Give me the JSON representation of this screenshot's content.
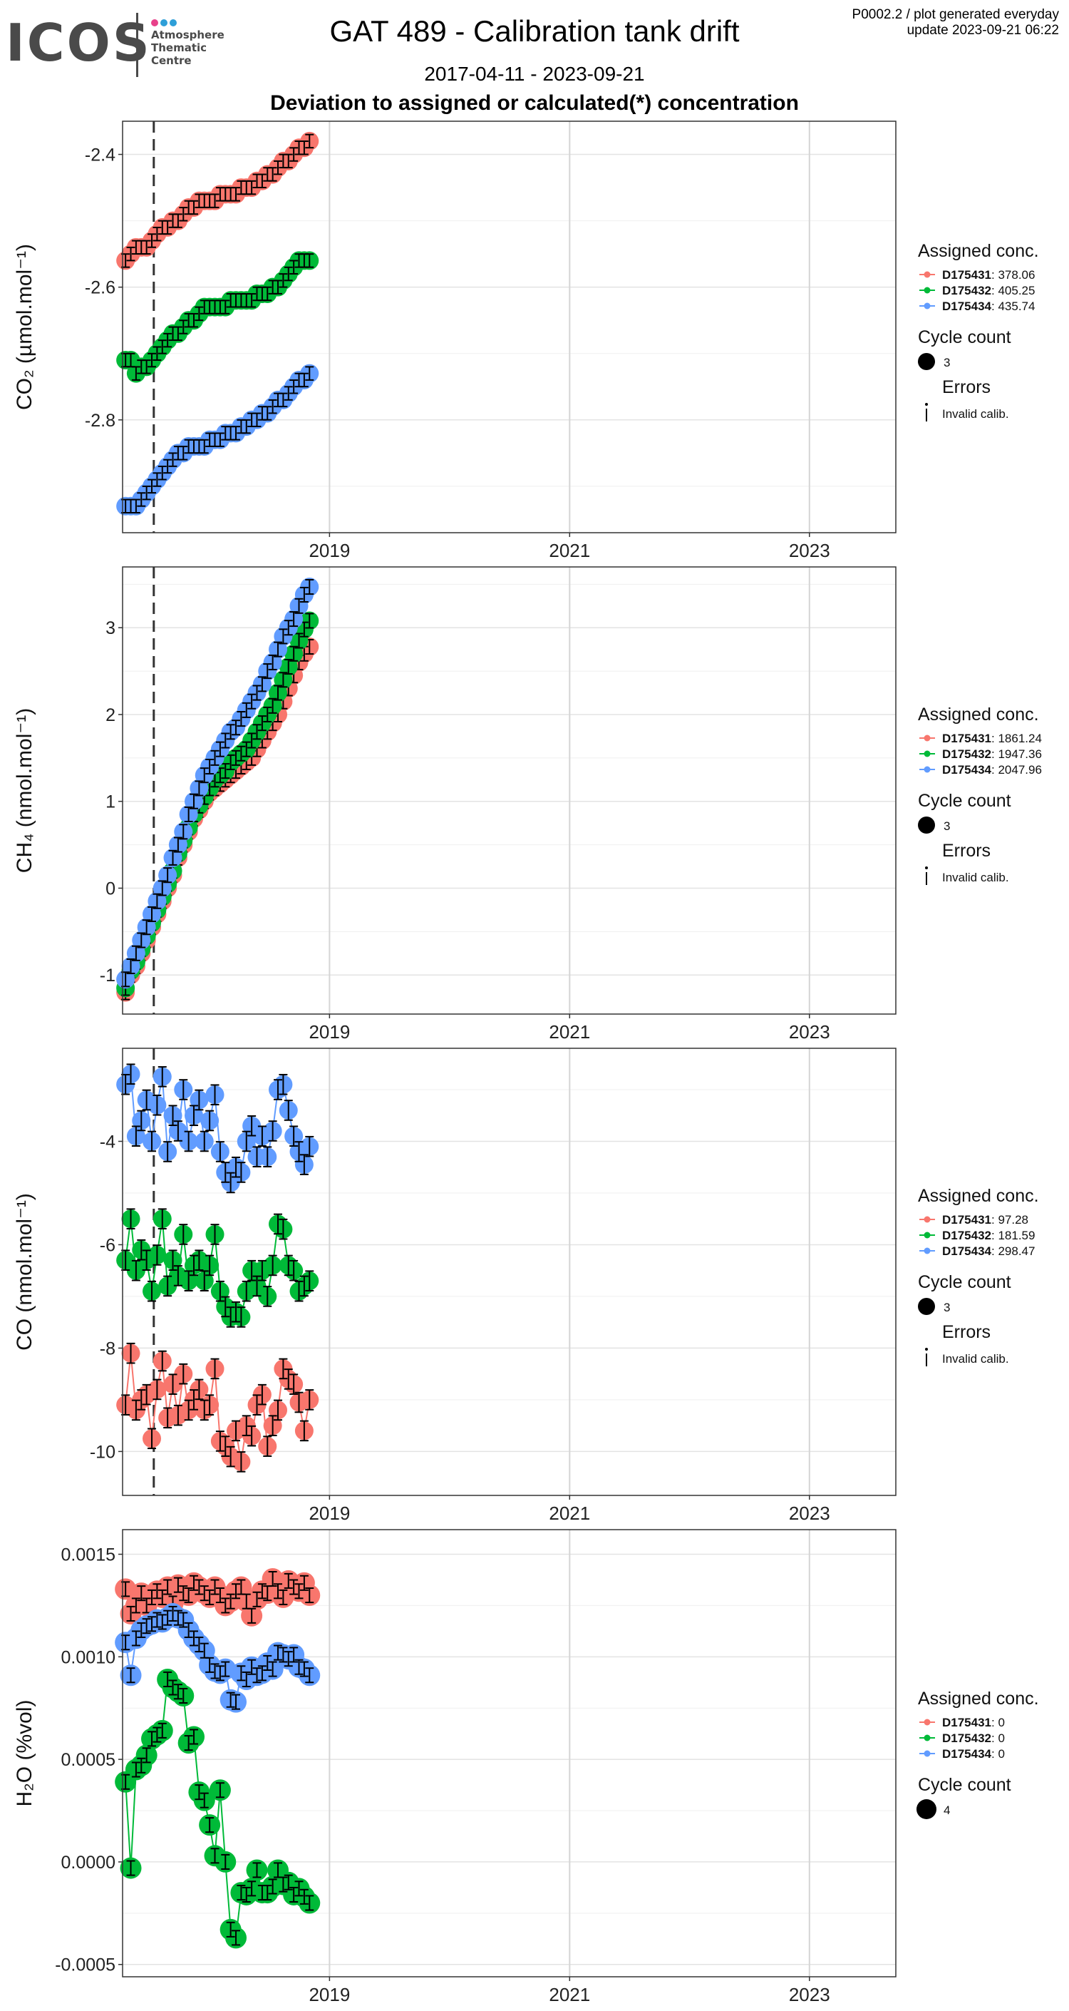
{
  "header": {
    "logo_text": "ICOS",
    "logo_subtitle": "Atmosphere\nThematic\nCentre",
    "logo_dot_colors": [
      "#e8418a",
      "#2e9fd8",
      "#2e9fd8"
    ],
    "title": "GAT 489 - Calibration tank drift",
    "meta_line1": "P0002.2 / plot generated everyday",
    "meta_line2": "update  2023-09-21 06:22",
    "date_range": "2017-04-11 - 2023-09-21",
    "subtitle": "Deviation to assigned or calculated(*) concentration"
  },
  "colors": {
    "D175431": "#F8766D",
    "D175432": "#00BA38",
    "D175434": "#619CFF"
  },
  "chart_data": [
    {
      "type": "scatter",
      "ylabel": "CO₂ (µmol.mol⁻¹)",
      "xlim": [
        "2017-04-11",
        "2023-09-21"
      ],
      "ylim": [
        -2.97,
        -2.35
      ],
      "x_ticks": [
        "2019",
        "2021",
        "2023"
      ],
      "y_ticks": [
        -2.4,
        -2.6,
        -2.8
      ],
      "vline": "2017-07-15",
      "legend": {
        "title": "Assigned conc.",
        "entries": [
          {
            "tank": "D175431",
            "value": ": 378.06"
          },
          {
            "tank": "D175432",
            "value": ": 405.25"
          },
          {
            "tank": "D175434",
            "value": ": 435.74"
          }
        ],
        "count_title": "Cycle count",
        "count_value": "3",
        "error_title": "Errors",
        "error_label": "Invalid calib."
      },
      "series": [
        {
          "name": "D175431",
          "x_start": "2017-04-20",
          "x_end": "2018-11-01",
          "values": [
            -2.56,
            -2.55,
            -2.54,
            -2.54,
            -2.54,
            -2.53,
            -2.52,
            -2.51,
            -2.51,
            -2.5,
            -2.5,
            -2.49,
            -2.48,
            -2.48,
            -2.47,
            -2.47,
            -2.47,
            -2.47,
            -2.46,
            -2.46,
            -2.46,
            -2.46,
            -2.45,
            -2.45,
            -2.45,
            -2.44,
            -2.44,
            -2.43,
            -2.43,
            -2.42,
            -2.41,
            -2.41,
            -2.4,
            -2.39,
            -2.39,
            -2.38
          ]
        },
        {
          "name": "D175432",
          "x_start": "2017-04-20",
          "x_end": "2018-11-01",
          "values": [
            -2.71,
            -2.71,
            -2.73,
            -2.72,
            -2.72,
            -2.71,
            -2.7,
            -2.69,
            -2.68,
            -2.67,
            -2.67,
            -2.66,
            -2.65,
            -2.65,
            -2.64,
            -2.63,
            -2.63,
            -2.63,
            -2.63,
            -2.63,
            -2.62,
            -2.62,
            -2.62,
            -2.62,
            -2.62,
            -2.61,
            -2.61,
            -2.61,
            -2.6,
            -2.6,
            -2.59,
            -2.58,
            -2.57,
            -2.56,
            -2.56,
            -2.56
          ]
        },
        {
          "name": "D175434",
          "x_start": "2017-04-20",
          "x_end": "2018-11-01",
          "values": [
            -2.93,
            -2.93,
            -2.93,
            -2.92,
            -2.91,
            -2.9,
            -2.89,
            -2.88,
            -2.87,
            -2.86,
            -2.85,
            -2.85,
            -2.84,
            -2.84,
            -2.84,
            -2.84,
            -2.83,
            -2.83,
            -2.83,
            -2.82,
            -2.82,
            -2.82,
            -2.81,
            -2.81,
            -2.8,
            -2.8,
            -2.79,
            -2.79,
            -2.78,
            -2.77,
            -2.77,
            -2.76,
            -2.75,
            -2.74,
            -2.74,
            -2.73
          ]
        }
      ]
    },
    {
      "type": "scatter",
      "ylabel": "CH₄ (nmol.mol⁻¹)",
      "xlim": [
        "2017-04-11",
        "2023-09-21"
      ],
      "ylim": [
        -1.45,
        3.7
      ],
      "x_ticks": [
        "2019",
        "2021",
        "2023"
      ],
      "y_ticks": [
        3,
        2,
        1,
        0,
        -1
      ],
      "vline": "2017-07-15",
      "legend": {
        "title": "Assigned conc.",
        "entries": [
          {
            "tank": "D175431",
            "value": ": 1861.24"
          },
          {
            "tank": "D175432",
            "value": ": 1947.36"
          },
          {
            "tank": "D175434",
            "value": ": 2047.96"
          }
        ],
        "count_title": "Cycle count",
        "count_value": "3",
        "error_title": "Errors",
        "error_label": "Invalid calib."
      },
      "series": [
        {
          "name": "D175431",
          "x_start": "2017-04-20",
          "x_end": "2018-11-01",
          "values": [
            -1.2,
            -1.0,
            -0.9,
            -0.75,
            -0.6,
            -0.45,
            -0.3,
            -0.15,
            0.0,
            0.15,
            0.35,
            0.5,
            0.65,
            0.8,
            0.9,
            1.0,
            1.1,
            1.15,
            1.2,
            1.25,
            1.3,
            1.35,
            1.4,
            1.45,
            1.5,
            1.6,
            1.7,
            1.8,
            1.9,
            2.0,
            2.15,
            2.3,
            2.45,
            2.6,
            2.7,
            2.78
          ]
        },
        {
          "name": "D175432",
          "x_start": "2017-04-20",
          "x_end": "2018-11-01",
          "values": [
            -1.15,
            -0.95,
            -0.85,
            -0.7,
            -0.55,
            -0.4,
            -0.25,
            -0.1,
            0.05,
            0.2,
            0.4,
            0.55,
            0.7,
            0.85,
            0.95,
            1.05,
            1.15,
            1.25,
            1.3,
            1.35,
            1.45,
            1.5,
            1.55,
            1.6,
            1.7,
            1.8,
            1.9,
            2.0,
            2.1,
            2.25,
            2.4,
            2.55,
            2.7,
            2.85,
            2.98,
            3.08
          ]
        },
        {
          "name": "D175434",
          "x_start": "2017-04-20",
          "x_end": "2018-11-01",
          "values": [
            -1.05,
            -0.9,
            -0.75,
            -0.6,
            -0.45,
            -0.3,
            -0.15,
            0.0,
            0.15,
            0.35,
            0.5,
            0.65,
            0.85,
            1.0,
            1.15,
            1.3,
            1.4,
            1.5,
            1.6,
            1.7,
            1.8,
            1.85,
            1.95,
            2.05,
            2.15,
            2.25,
            2.35,
            2.5,
            2.6,
            2.75,
            2.9,
            3.0,
            3.1,
            3.25,
            3.38,
            3.47
          ]
        }
      ]
    },
    {
      "type": "scatter",
      "ylabel": "CO (nmol.mol⁻¹)",
      "xlim": [
        "2017-04-11",
        "2023-09-21"
      ],
      "ylim": [
        -10.85,
        -2.2
      ],
      "x_ticks": [
        "2019",
        "2021",
        "2023"
      ],
      "y_ticks": [
        -4,
        -6,
        -8,
        -10
      ],
      "vline": "2017-07-15",
      "legend": {
        "title": "Assigned conc.",
        "entries": [
          {
            "tank": "D175431",
            "value": ": 97.28"
          },
          {
            "tank": "D175432",
            "value": ": 181.59"
          },
          {
            "tank": "D175434",
            "value": ": 298.47"
          }
        ],
        "count_title": "Cycle count",
        "count_value": "3",
        "error_title": "Errors",
        "error_label": "Invalid calib."
      },
      "series": [
        {
          "name": "D175431",
          "x_start": "2017-04-20",
          "x_end": "2018-11-01",
          "values": [
            -9.1,
            -8.1,
            -9.2,
            -9.0,
            -8.9,
            -9.75,
            -8.8,
            -8.25,
            -9.35,
            -8.7,
            -9.3,
            -8.5,
            -9.2,
            -9.0,
            -8.8,
            -9.2,
            -9.1,
            -8.4,
            -9.8,
            -9.9,
            -10.1,
            -9.6,
            -10.2,
            -9.5,
            -9.7,
            -9.1,
            -8.9,
            -9.9,
            -9.5,
            -9.2,
            -8.4,
            -8.6,
            -8.7,
            -9.05,
            -9.6,
            -9.0
          ]
        },
        {
          "name": "D175432",
          "x_start": "2017-04-20",
          "x_end": "2018-11-01",
          "values": [
            -6.3,
            -5.5,
            -6.5,
            -6.1,
            -6.3,
            -6.9,
            -6.2,
            -5.5,
            -6.8,
            -6.3,
            -6.6,
            -5.8,
            -6.7,
            -6.4,
            -6.3,
            -6.7,
            -6.4,
            -5.8,
            -6.9,
            -7.2,
            -7.4,
            -7.3,
            -7.4,
            -6.9,
            -6.5,
            -6.8,
            -6.5,
            -7.0,
            -6.4,
            -5.6,
            -5.7,
            -6.4,
            -6.5,
            -6.9,
            -6.8,
            -6.7
          ]
        },
        {
          "name": "D175434",
          "x_start": "2017-04-20",
          "x_end": "2018-11-01",
          "values": [
            -2.9,
            -2.7,
            -3.9,
            -3.6,
            -3.2,
            -4.0,
            -3.3,
            -2.75,
            -4.2,
            -3.5,
            -3.8,
            -3.0,
            -4.0,
            -3.5,
            -3.2,
            -4.0,
            -3.6,
            -3.1,
            -4.2,
            -4.6,
            -4.8,
            -4.5,
            -4.6,
            -4.0,
            -3.7,
            -4.3,
            -3.9,
            -4.3,
            -3.8,
            -3.0,
            -2.9,
            -3.4,
            -3.9,
            -4.2,
            -4.45,
            -4.1
          ]
        }
      ]
    },
    {
      "type": "scatter",
      "ylabel": "H₂O (%vol)",
      "xlim": [
        "2017-04-11",
        "2023-09-21"
      ],
      "ylim": [
        -0.00056,
        0.00162
      ],
      "x_ticks": [
        "2019",
        "2021",
        "2023"
      ],
      "y_ticks": [
        0.0015,
        0.001,
        0.0005,
        0.0,
        -0.0005
      ],
      "y_tick_labels": [
        "0.0015",
        "0.0010",
        "0.0005",
        "0.0000",
        "-0.0005"
      ],
      "legend": {
        "title": "Assigned conc.",
        "entries": [
          {
            "tank": "D175431",
            "value": ": 0"
          },
          {
            "tank": "D175432",
            "value": ": 0"
          },
          {
            "tank": "D175434",
            "value": ": 0"
          }
        ],
        "count_title": "Cycle count",
        "count_value": "4"
      },
      "series": [
        {
          "name": "D175431",
          "x_start": "2017-04-20",
          "x_end": "2018-11-01",
          "values": [
            0.00133,
            0.00121,
            0.00125,
            0.00131,
            0.00125,
            0.00129,
            0.00132,
            0.00129,
            0.00134,
            0.00126,
            0.00135,
            0.00131,
            0.0013,
            0.00136,
            0.00134,
            0.00131,
            0.00129,
            0.00134,
            0.0013,
            0.00125,
            0.00127,
            0.00132,
            0.00134,
            0.00127,
            0.0012,
            0.00128,
            0.00132,
            0.00131,
            0.00138,
            0.00132,
            0.00129,
            0.00137,
            0.00134,
            0.00132,
            0.00136,
            0.0013
          ]
        },
        {
          "name": "D175432",
          "x_start": "2017-04-20",
          "x_end": "2018-11-01",
          "values": [
            0.00039,
            -3e-05,
            0.00045,
            0.00047,
            0.00052,
            0.0006,
            0.00062,
            0.00064,
            0.00089,
            0.00085,
            0.00083,
            0.00081,
            0.00058,
            0.00061,
            0.00034,
            0.0003,
            0.00018,
            3e-05,
            0.00035,
            0.0,
            -0.00033,
            -0.00037,
            -0.00015,
            -0.00016,
            -0.00013,
            -4e-05,
            -0.00015,
            -0.00015,
            -0.00012,
            -4e-05,
            -0.00011,
            -0.0001,
            -0.00016,
            -0.00013,
            -0.00017,
            -0.0002
          ]
        },
        {
          "name": "D175434",
          "x_start": "2017-04-20",
          "x_end": "2018-11-01",
          "values": [
            0.00107,
            0.00091,
            0.00109,
            0.00113,
            0.00115,
            0.00116,
            0.00118,
            0.00117,
            0.00119,
            0.00121,
            0.00119,
            0.00118,
            0.00113,
            0.00109,
            0.00106,
            0.00103,
            0.00096,
            0.00093,
            0.00092,
            0.00094,
            0.00079,
            0.00078,
            0.00092,
            0.00089,
            0.00095,
            0.00091,
            0.00092,
            0.00097,
            0.00094,
            0.00102,
            0.00101,
            0.00099,
            0.00101,
            0.00095,
            0.00094,
            0.00091
          ]
        }
      ]
    }
  ]
}
